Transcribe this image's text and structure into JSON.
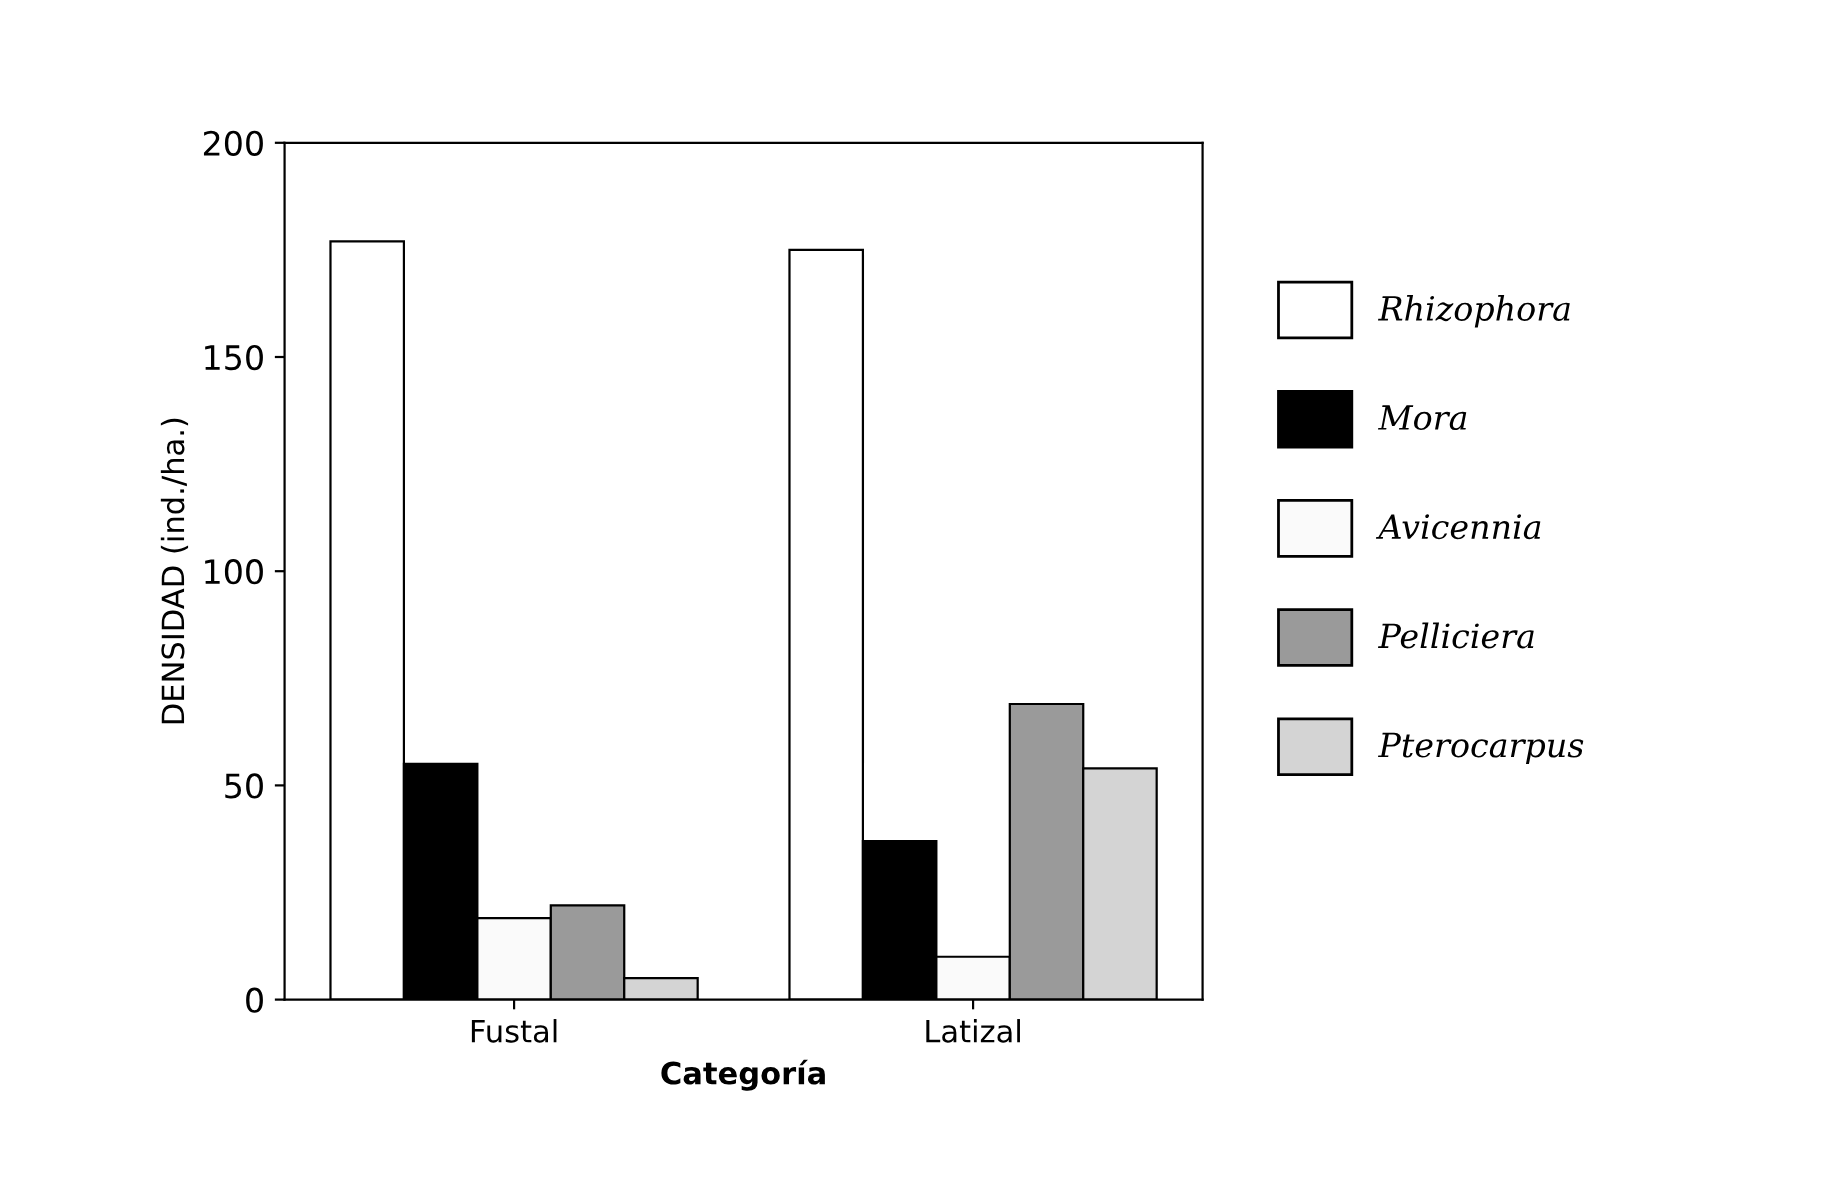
{
  "chart_data": {
    "type": "bar",
    "categories": [
      "Fustal",
      "Latizal"
    ],
    "xlabel": "Categoría",
    "ylabel": "DENSIDAD (ind./ha.)",
    "series": [
      {
        "name": "Rhizophora",
        "color": "#ffffff",
        "values": [
          177,
          175
        ]
      },
      {
        "name": "Mora",
        "color": "#000000",
        "values": [
          55,
          37
        ]
      },
      {
        "name": "Avicennia",
        "color": "#fafafa",
        "values": [
          19,
          10
        ]
      },
      {
        "name": "Pelliciera",
        "color": "#9a9a9a",
        "values": [
          22,
          69
        ]
      },
      {
        "name": "Pterocarpus",
        "color": "#d4d4d4",
        "values": [
          5,
          54
        ]
      }
    ],
    "ylim": [
      0,
      200
    ],
    "yticks": [
      0,
      50,
      100,
      150,
      200
    ],
    "grid": false,
    "legend": "right"
  }
}
